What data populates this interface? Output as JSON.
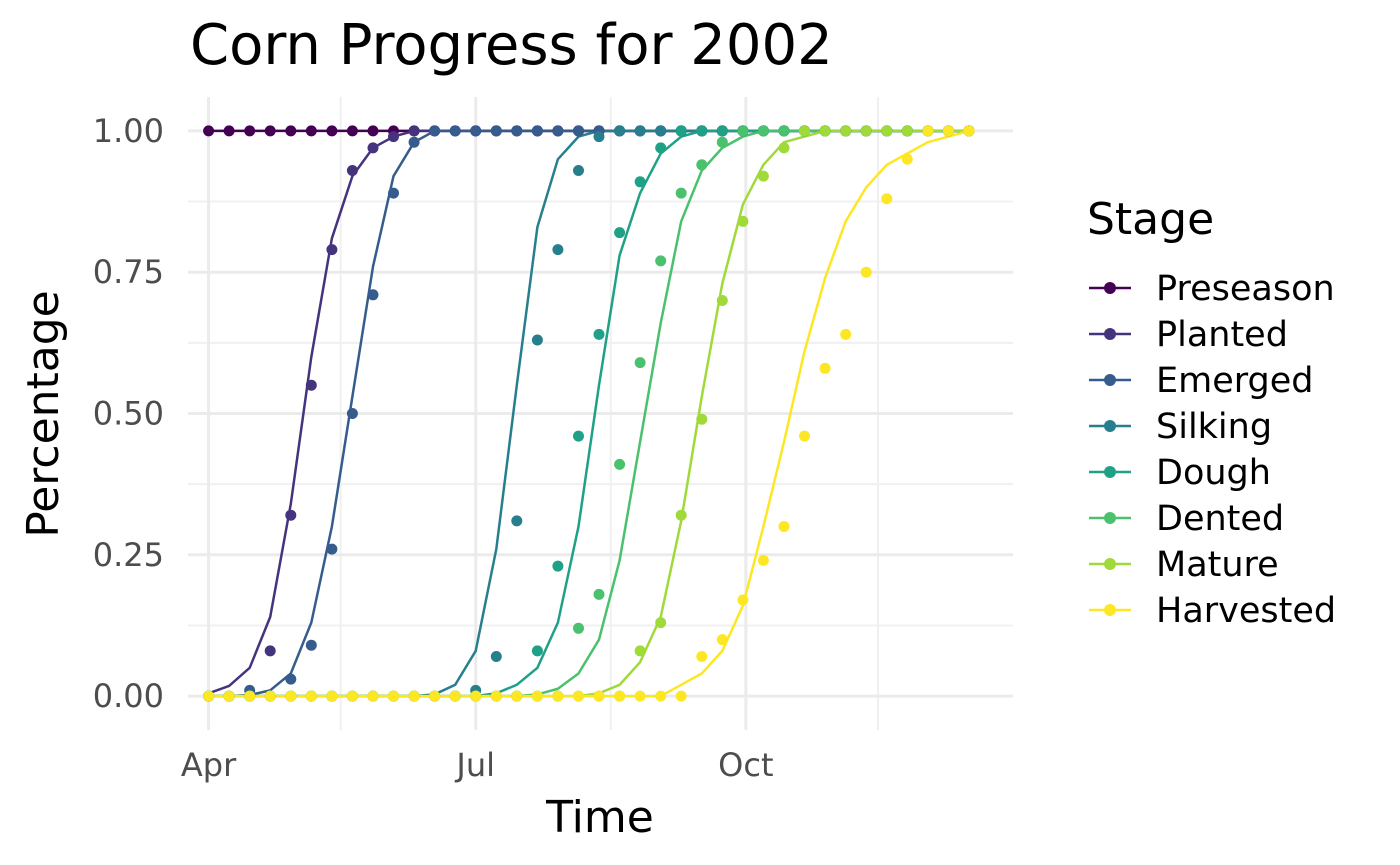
{
  "chart_data": {
    "type": "line",
    "title": "Corn Progress for 2002",
    "xlabel": "Time",
    "ylabel": "Percentage",
    "legend_title": "Stage",
    "legend_position": "right",
    "grid": true,
    "xlim": [
      "2002-03-25",
      "2002-12-31"
    ],
    "ylim": [
      -0.06,
      1.06
    ],
    "x_ticks": [
      {
        "date": "2002-04-01",
        "label": "Apr"
      },
      {
        "date": "2002-07-01",
        "label": "Jul"
      },
      {
        "date": "2002-10-01",
        "label": "Oct"
      }
    ],
    "x_minor_ticks": [
      "2002-05-16",
      "2002-08-16",
      "2002-11-15"
    ],
    "y_ticks": [
      {
        "value": 0,
        "label": "0.00"
      },
      {
        "value": 0.25,
        "label": "0.25"
      },
      {
        "value": 0.5,
        "label": "0.50"
      },
      {
        "value": 0.75,
        "label": "0.75"
      },
      {
        "value": 1,
        "label": "1.00"
      }
    ],
    "weeks": [
      "2002-04-01",
      "2002-04-08",
      "2002-04-15",
      "2002-04-22",
      "2002-04-29",
      "2002-05-06",
      "2002-05-13",
      "2002-05-20",
      "2002-05-27",
      "2002-06-03",
      "2002-06-10",
      "2002-06-17",
      "2002-06-24",
      "2002-07-01",
      "2002-07-08",
      "2002-07-15",
      "2002-07-22",
      "2002-07-29",
      "2002-08-05",
      "2002-08-12",
      "2002-08-19",
      "2002-08-26",
      "2002-09-02",
      "2002-09-09",
      "2002-09-16",
      "2002-09-23",
      "2002-09-30",
      "2002-10-07",
      "2002-10-14",
      "2002-10-21",
      "2002-10-28",
      "2002-11-04",
      "2002-11-11",
      "2002-11-18",
      "2002-11-25",
      "2002-12-02",
      "2002-12-09",
      "2002-12-16"
    ],
    "series": [
      {
        "name": "Preseason",
        "color": "#440154",
        "points": [
          1,
          1,
          1,
          1,
          1,
          1,
          1,
          1,
          1,
          1,
          1,
          1,
          1,
          1,
          1,
          1,
          1,
          1,
          1,
          1,
          1,
          1,
          1,
          1,
          1,
          1,
          1,
          1,
          1,
          1,
          1,
          1,
          1,
          1,
          1,
          1,
          1,
          1
        ],
        "fit": [
          1,
          1,
          1,
          1,
          1,
          1,
          1,
          1,
          1,
          1,
          1,
          1,
          1,
          1,
          1,
          1,
          1,
          1,
          1,
          1,
          1,
          1,
          1,
          1,
          1,
          1,
          1,
          1,
          1,
          1,
          1,
          1,
          1,
          1,
          1,
          1,
          1,
          1
        ]
      },
      {
        "name": "Planted",
        "color": "#46337E",
        "points": [
          0,
          0,
          0,
          0.08,
          0.32,
          0.55,
          0.79,
          0.93,
          0.97,
          0.99,
          1,
          1,
          1,
          1,
          1,
          1,
          1,
          1,
          1,
          1,
          1,
          1,
          1,
          1,
          1,
          1,
          1,
          1,
          1,
          1,
          1,
          1,
          1,
          1,
          1,
          1,
          1,
          1
        ],
        "fit": [
          0.005,
          0.018,
          0.05,
          0.14,
          0.34,
          0.6,
          0.81,
          0.92,
          0.97,
          0.99,
          1,
          1,
          1,
          1,
          1,
          1,
          1,
          1,
          1,
          1,
          1,
          1,
          1,
          1,
          1,
          1,
          1,
          1,
          1,
          1,
          1,
          1,
          1,
          1,
          1,
          1,
          1,
          1
        ]
      },
      {
        "name": "Emerged",
        "color": "#365C8D",
        "points": [
          0,
          0,
          0.01,
          0,
          0.03,
          0.09,
          0.26,
          0.5,
          0.71,
          0.89,
          0.98,
          1,
          1,
          1,
          1,
          1,
          1,
          1,
          1,
          1,
          1,
          1,
          1,
          1,
          1,
          1,
          1,
          1,
          1,
          1,
          1,
          1,
          1,
          1,
          1,
          1,
          1,
          1
        ],
        "fit": [
          0,
          0,
          0.002,
          0.01,
          0.04,
          0.13,
          0.3,
          0.53,
          0.76,
          0.92,
          0.98,
          1,
          1,
          1,
          1,
          1,
          1,
          1,
          1,
          1,
          1,
          1,
          1,
          1,
          1,
          1,
          1,
          1,
          1,
          1,
          1,
          1,
          1,
          1,
          1,
          1,
          1,
          1
        ]
      },
      {
        "name": "Silking",
        "color": "#277F8E",
        "points": [
          0,
          0,
          0,
          0,
          0,
          0,
          0,
          0,
          0,
          0,
          0,
          0,
          0,
          0.01,
          0.07,
          0.31,
          0.63,
          0.79,
          0.93,
          0.99,
          1,
          1,
          1,
          1,
          1,
          1,
          1,
          1,
          1,
          1,
          1,
          1,
          1,
          1,
          1,
          1,
          1,
          1
        ],
        "fit": [
          0,
          0,
          0,
          0,
          0,
          0,
          0,
          0,
          0,
          0,
          0,
          0.003,
          0.02,
          0.08,
          0.26,
          0.55,
          0.83,
          0.95,
          0.99,
          1,
          1,
          1,
          1,
          1,
          1,
          1,
          1,
          1,
          1,
          1,
          1,
          1,
          1,
          1,
          1,
          1,
          1,
          1
        ]
      },
      {
        "name": "Dough",
        "color": "#1FA187",
        "points": [
          0,
          0,
          0,
          0,
          0,
          0,
          0,
          0,
          0,
          0,
          0,
          0,
          0,
          0,
          0,
          0,
          0.08,
          0.23,
          0.46,
          0.64,
          0.82,
          0.91,
          0.97,
          1,
          1,
          1,
          1,
          1,
          1,
          1,
          1,
          1,
          1,
          1,
          1,
          1,
          1,
          1
        ],
        "fit": [
          0,
          0,
          0,
          0,
          0,
          0,
          0,
          0,
          0,
          0,
          0,
          0,
          0,
          0,
          0.005,
          0.02,
          0.05,
          0.13,
          0.3,
          0.55,
          0.78,
          0.89,
          0.96,
          0.99,
          1,
          1,
          1,
          1,
          1,
          1,
          1,
          1,
          1,
          1,
          1,
          1,
          1,
          1
        ]
      },
      {
        "name": "Dented",
        "color": "#4AC16D",
        "points": [
          0,
          0,
          0,
          0,
          0,
          0,
          0,
          0,
          0,
          0,
          0,
          0,
          0,
          0,
          0,
          0,
          0,
          0,
          0.12,
          0.18,
          0.41,
          0.59,
          0.77,
          0.89,
          0.94,
          0.98,
          1,
          1,
          1,
          1,
          1,
          1,
          1,
          1,
          1,
          1,
          1,
          1
        ],
        "fit": [
          0,
          0,
          0,
          0,
          0,
          0,
          0,
          0,
          0,
          0,
          0,
          0,
          0,
          0,
          0,
          0,
          0.003,
          0.013,
          0.04,
          0.1,
          0.24,
          0.45,
          0.66,
          0.84,
          0.93,
          0.97,
          0.99,
          1,
          1,
          1,
          1,
          1,
          1,
          1,
          1,
          1,
          1,
          1
        ]
      },
      {
        "name": "Mature",
        "color": "#A0DA39",
        "points": [
          0,
          0,
          0,
          0,
          0,
          0,
          0,
          0,
          0,
          0,
          0,
          0,
          0,
          0,
          0,
          0,
          0,
          0,
          0,
          0,
          0,
          0.08,
          0.13,
          0.32,
          0.49,
          0.7,
          0.84,
          0.92,
          0.97,
          1,
          1,
          1,
          1,
          1,
          1,
          1,
          1,
          1
        ],
        "fit": [
          0,
          0,
          0,
          0,
          0,
          0,
          0,
          0,
          0,
          0,
          0,
          0,
          0,
          0,
          0,
          0,
          0,
          0,
          0,
          0.005,
          0.02,
          0.06,
          0.14,
          0.31,
          0.53,
          0.73,
          0.87,
          0.94,
          0.98,
          0.99,
          1,
          1,
          1,
          1,
          1,
          1,
          1,
          1
        ]
      },
      {
        "name": "Harvested",
        "color": "#FDE725",
        "points": [
          0,
          0,
          0,
          0,
          0,
          0,
          0,
          0,
          0,
          0,
          0,
          0,
          0,
          0,
          0,
          0,
          0,
          0,
          0,
          0,
          0,
          0,
          0,
          0,
          0.07,
          0.1,
          0.17,
          0.24,
          0.3,
          0.46,
          0.58,
          0.64,
          0.75,
          0.88,
          0.95,
          1,
          1,
          1
        ],
        "fit": [
          0,
          0,
          0,
          0,
          0,
          0,
          0,
          0,
          0,
          0,
          0,
          0,
          0,
          0,
          0,
          0,
          0,
          0,
          0,
          0,
          0,
          0,
          0,
          0.02,
          0.04,
          0.08,
          0.16,
          0.3,
          0.45,
          0.61,
          0.74,
          0.84,
          0.9,
          0.94,
          0.96,
          0.98,
          0.99,
          1
        ]
      }
    ]
  }
}
